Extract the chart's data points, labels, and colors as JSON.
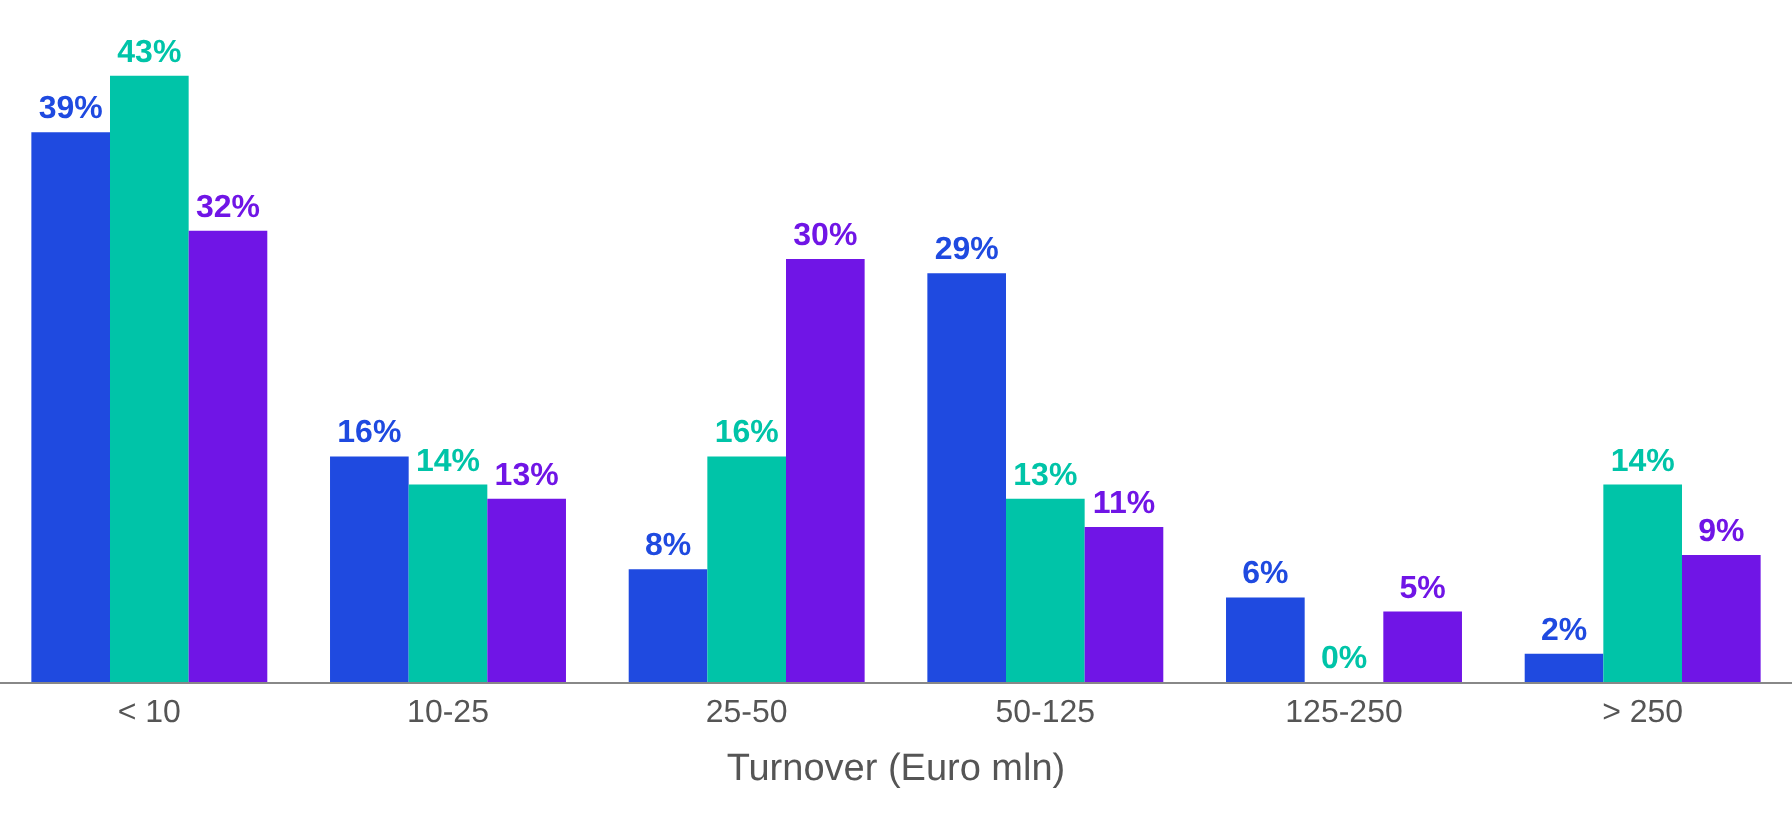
{
  "chart_data": {
    "type": "bar",
    "xlabel": "Turnover (Euro mln)",
    "categories": [
      "< 10",
      "10-25",
      "25-50",
      "50-125",
      "125-250",
      "> 250"
    ],
    "series": [
      {
        "color": "#1f4ae0",
        "values": [
          39,
          16,
          8,
          29,
          6,
          2
        ],
        "value_labels": [
          "39%",
          "16%",
          "8%",
          "29%",
          "6%",
          "2%"
        ]
      },
      {
        "color": "#00c4a8",
        "values": [
          43,
          14,
          16,
          13,
          0,
          14
        ],
        "value_labels": [
          "43%",
          "14%",
          "16%",
          "13%",
          "0%",
          "14%"
        ]
      },
      {
        "color": "#7015e6",
        "values": [
          32,
          13,
          30,
          11,
          5,
          9
        ],
        "value_labels": [
          "32%",
          "13%",
          "30%",
          "11%",
          "5%",
          "9%"
        ]
      }
    ],
    "tick_labels": "x"
  }
}
